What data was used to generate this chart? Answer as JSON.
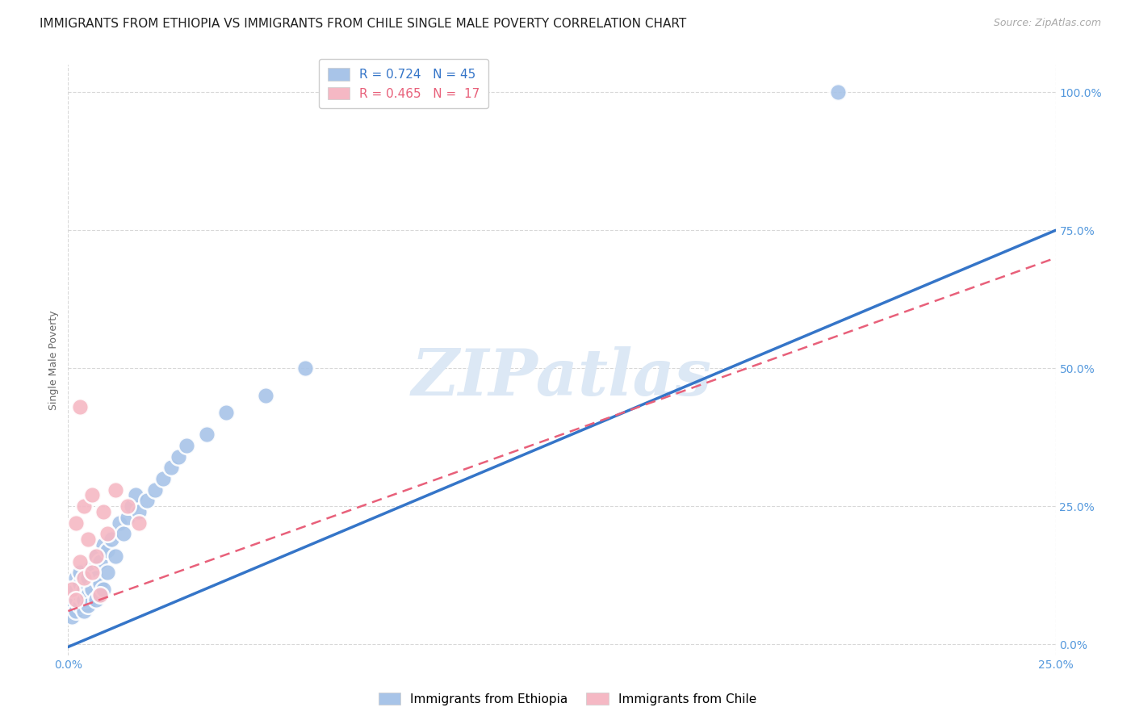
{
  "title": "IMMIGRANTS FROM ETHIOPIA VS IMMIGRANTS FROM CHILE SINGLE MALE POVERTY CORRELATION CHART",
  "source": "Source: ZipAtlas.com",
  "ylabel": "Single Male Poverty",
  "xlim": [
    0.0,
    0.25
  ],
  "ylim": [
    -0.02,
    1.05
  ],
  "ytick_labels": [
    "0.0%",
    "25.0%",
    "50.0%",
    "75.0%",
    "100.0%"
  ],
  "ytick_values": [
    0.0,
    0.25,
    0.5,
    0.75,
    1.0
  ],
  "xtick_labels": [
    "0.0%",
    "25.0%"
  ],
  "xtick_values": [
    0.0,
    0.25
  ],
  "ethiopia_color": "#a8c4e8",
  "chile_color": "#f5b8c4",
  "ethiopia_line_color": "#3575c8",
  "chile_line_color": "#e8607a",
  "watermark_text": "ZIPatlas",
  "ethiopia_points_x": [
    0.001,
    0.001,
    0.002,
    0.002,
    0.002,
    0.003,
    0.003,
    0.003,
    0.003,
    0.004,
    0.004,
    0.004,
    0.005,
    0.005,
    0.005,
    0.006,
    0.006,
    0.007,
    0.007,
    0.007,
    0.008,
    0.008,
    0.009,
    0.009,
    0.01,
    0.01,
    0.011,
    0.012,
    0.013,
    0.014,
    0.015,
    0.016,
    0.017,
    0.018,
    0.02,
    0.022,
    0.024,
    0.026,
    0.028,
    0.03,
    0.035,
    0.04,
    0.05,
    0.06,
    0.195
  ],
  "ethiopia_points_y": [
    0.05,
    0.08,
    0.06,
    0.1,
    0.12,
    0.07,
    0.09,
    0.11,
    0.13,
    0.06,
    0.1,
    0.08,
    0.09,
    0.12,
    0.07,
    0.1,
    0.14,
    0.08,
    0.12,
    0.16,
    0.11,
    0.15,
    0.1,
    0.18,
    0.13,
    0.17,
    0.19,
    0.16,
    0.22,
    0.2,
    0.23,
    0.25,
    0.27,
    0.24,
    0.26,
    0.28,
    0.3,
    0.32,
    0.34,
    0.36,
    0.38,
    0.42,
    0.45,
    0.5,
    1.0
  ],
  "chile_points_x": [
    0.001,
    0.002,
    0.002,
    0.003,
    0.003,
    0.004,
    0.004,
    0.005,
    0.006,
    0.006,
    0.007,
    0.008,
    0.009,
    0.01,
    0.012,
    0.015,
    0.018
  ],
  "chile_points_y": [
    0.1,
    0.08,
    0.22,
    0.15,
    0.43,
    0.12,
    0.25,
    0.19,
    0.13,
    0.27,
    0.16,
    0.09,
    0.24,
    0.2,
    0.28,
    0.25,
    0.22
  ],
  "eth_line_x0": 0.0,
  "eth_line_x1": 0.25,
  "eth_line_y0": -0.005,
  "eth_line_y1": 0.75,
  "chi_line_x0": 0.0,
  "chi_line_x1": 0.25,
  "chi_line_y0": 0.06,
  "chi_line_y1": 0.7,
  "background_color": "#ffffff",
  "grid_color": "#d8d8d8",
  "title_fontsize": 11,
  "label_fontsize": 9,
  "tick_fontsize": 10,
  "watermark_color": "#dce8f5",
  "tick_color": "#5599dd"
}
